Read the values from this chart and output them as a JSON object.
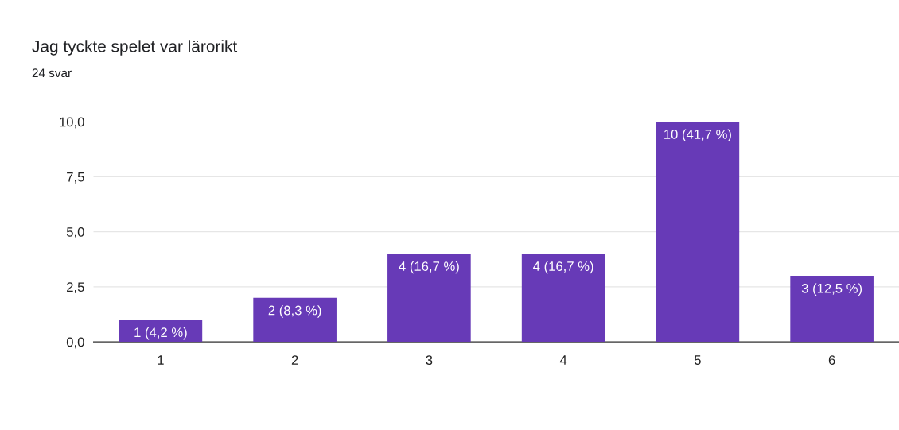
{
  "chart_data": {
    "type": "bar",
    "title": "Jag tyckte spelet var lärorikt",
    "subtitle": "24 svar",
    "categories": [
      "1",
      "2",
      "3",
      "4",
      "5",
      "6"
    ],
    "values": [
      1,
      2,
      4,
      4,
      10,
      3
    ],
    "value_labels": [
      "1 (4,2 %)",
      "2 (8,3 %)",
      "4 (16,7 %)",
      "4 (16,7 %)",
      "10 (41,7 %)",
      "3 (12,5 %)"
    ],
    "color": "#673ab7",
    "ylim": [
      0,
      10
    ],
    "yticks": [
      {
        "value": 0,
        "label": "0,0"
      },
      {
        "value": 2.5,
        "label": "2,5"
      },
      {
        "value": 5,
        "label": "5,0"
      },
      {
        "value": 7.5,
        "label": "7,5"
      },
      {
        "value": 10,
        "label": "10,0"
      }
    ],
    "grid": "y",
    "legend": false
  }
}
